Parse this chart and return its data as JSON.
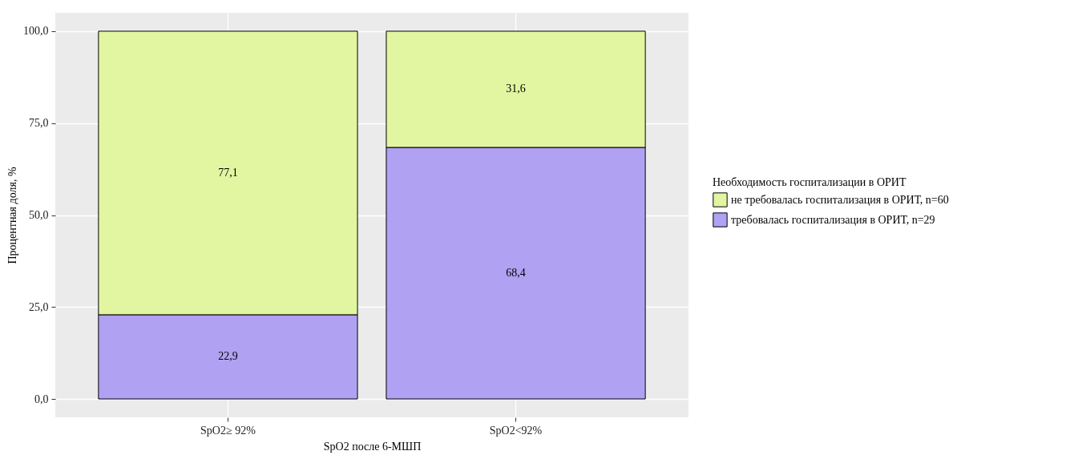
{
  "chart_data": {
    "type": "bar",
    "stacked": true,
    "xlabel": "SpO2 после 6-МШП",
    "ylabel": "Процентная доля, %",
    "legend_title": "Необходимость госпитализации  в ОРИТ",
    "categories": [
      "SpO2≥ 92%",
      "SpO2<92%"
    ],
    "series": [
      {
        "name": "требовалась госпитализация в ОРИТ, n=29",
        "color": "#b1a1f2",
        "values": [
          22.9,
          68.4
        ],
        "value_labels": [
          "22,9",
          "68,4"
        ]
      },
      {
        "name": "не требовалась госпитализация в ОРИТ, n=60",
        "color": "#e2f5a1",
        "values": [
          77.1,
          31.6
        ],
        "value_labels": [
          "77,1",
          "31,6"
        ]
      }
    ],
    "ylim": [
      -5,
      105
    ],
    "yticks": [
      {
        "value": 0,
        "label": "0,0"
      },
      {
        "value": 25,
        "label": "25,0"
      },
      {
        "value": 50,
        "label": "50,0"
      },
      {
        "value": 75,
        "label": "75,0"
      },
      {
        "value": 100,
        "label": "100,0"
      }
    ],
    "grid": true,
    "legend": "right"
  }
}
